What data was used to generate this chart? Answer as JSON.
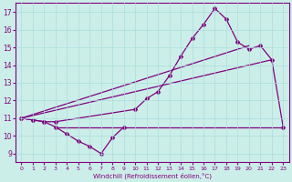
{
  "xlabel": "Windchill (Refroidissement éolien,°C)",
  "line_color": "#800080",
  "bg_color": "#cceee8",
  "grid_color": "#aadddd",
  "ylim": [
    8.5,
    17.5
  ],
  "xlim": [
    -0.5,
    23.5
  ],
  "yticks": [
    9,
    10,
    11,
    12,
    13,
    14,
    15,
    16,
    17
  ],
  "xticks": [
    0,
    1,
    2,
    3,
    4,
    5,
    6,
    7,
    8,
    9,
    10,
    11,
    12,
    13,
    14,
    15,
    16,
    17,
    18,
    19,
    20,
    21,
    22,
    23
  ],
  "series": {
    "wavy": {
      "x": [
        0,
        1,
        2,
        3,
        4,
        5,
        6,
        7,
        8,
        9
      ],
      "y": [
        11.0,
        10.9,
        10.8,
        10.5,
        10.1,
        9.7,
        9.4,
        9.0,
        9.9,
        10.5
      ]
    },
    "main": {
      "x": [
        0,
        1,
        2,
        3,
        10,
        11,
        12,
        13,
        14,
        15,
        16,
        17,
        18,
        19,
        20,
        21,
        22,
        23
      ],
      "y": [
        11.0,
        10.9,
        10.8,
        10.8,
        11.5,
        12.1,
        12.5,
        13.4,
        14.5,
        15.5,
        16.3,
        17.2,
        16.6,
        15.3,
        14.9,
        15.1,
        14.3,
        10.5
      ]
    },
    "flat": {
      "x": [
        3,
        23
      ],
      "y": [
        10.5,
        10.5
      ]
    },
    "trend1": {
      "x": [
        0,
        20
      ],
      "y": [
        11.0,
        15.1
      ]
    },
    "trend2": {
      "x": [
        0,
        22
      ],
      "y": [
        11.0,
        14.3
      ]
    }
  }
}
